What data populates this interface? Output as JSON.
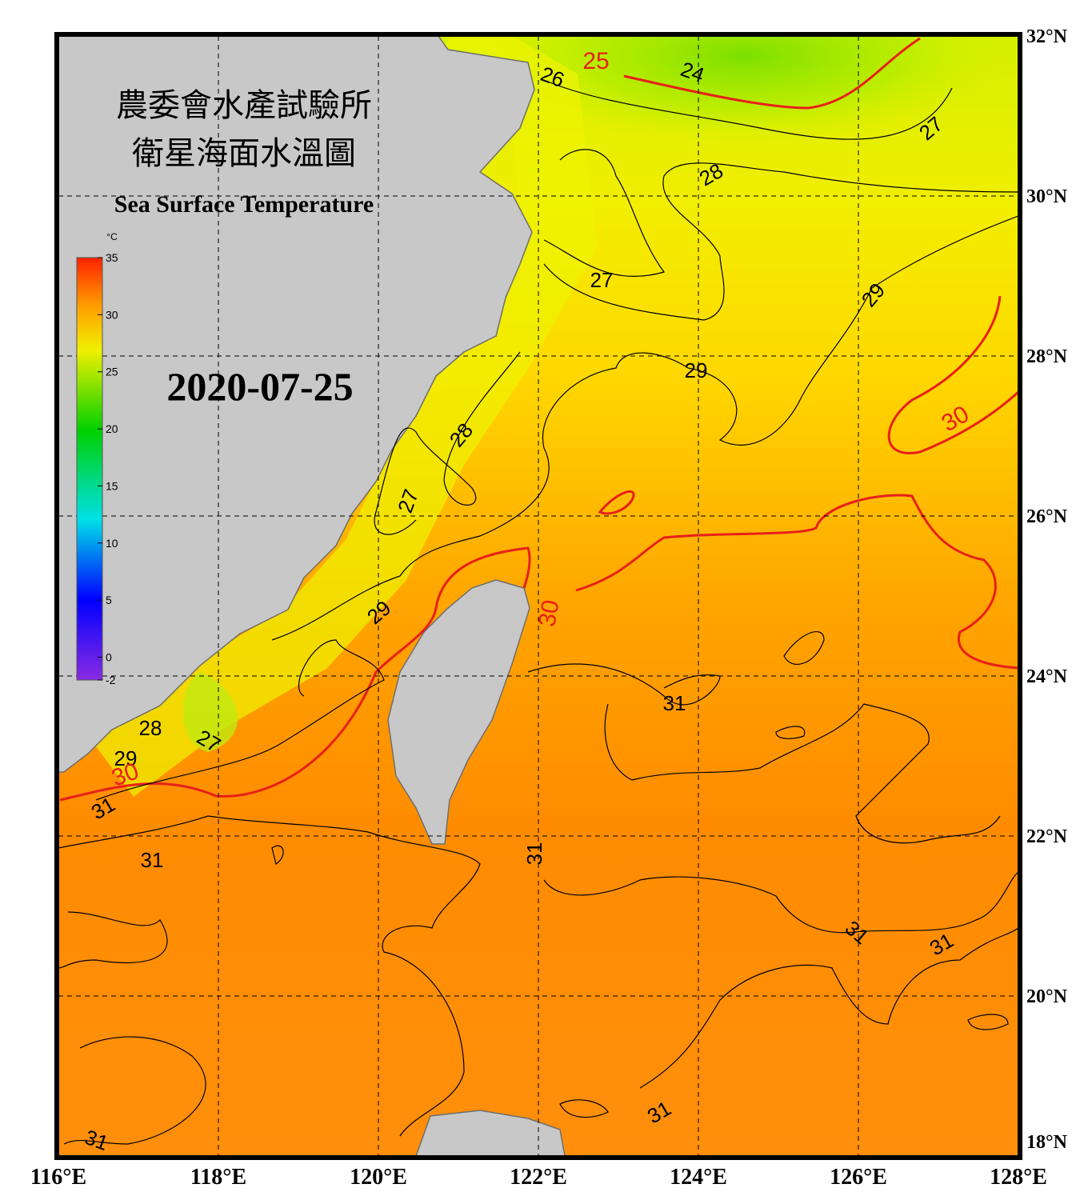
{
  "header": {
    "title_zh_1": "農委會水產試驗所",
    "title_zh_2": "衛星海面水溫圖",
    "title_en": "Sea Surface Temperature"
  },
  "date": "2020-07-25",
  "colorbar": {
    "unit": "°C",
    "range": [
      -2,
      35
    ],
    "ticks": [
      35,
      30,
      25,
      20,
      15,
      10,
      5,
      0,
      -2
    ]
  },
  "longitudes": [
    {
      "value": 116,
      "label": "116°E"
    },
    {
      "value": 118,
      "label": "118°E"
    },
    {
      "value": 120,
      "label": "120°E"
    },
    {
      "value": 122,
      "label": "122°E"
    },
    {
      "value": 124,
      "label": "124°E"
    },
    {
      "value": 126,
      "label": "126°E"
    },
    {
      "value": 128,
      "label": "128°E"
    }
  ],
  "latitudes": [
    {
      "value": 32,
      "label": "32°N"
    },
    {
      "value": 30,
      "label": "30°N"
    },
    {
      "value": 28,
      "label": "28°N"
    },
    {
      "value": 26,
      "label": "26°N"
    },
    {
      "value": 24,
      "label": "24°N"
    },
    {
      "value": 22,
      "label": "22°N"
    },
    {
      "value": 20,
      "label": "20°N"
    },
    {
      "value": 18,
      "label": "18°N"
    }
  ],
  "contour_labels": [
    "25",
    "26",
    "24",
    "27",
    "28",
    "27",
    "29",
    "29",
    "30",
    "28",
    "27",
    "29",
    "30",
    "31",
    "28",
    "27",
    "29",
    "30",
    "31",
    "31",
    "31",
    "31",
    "31",
    "31",
    "31"
  ]
}
